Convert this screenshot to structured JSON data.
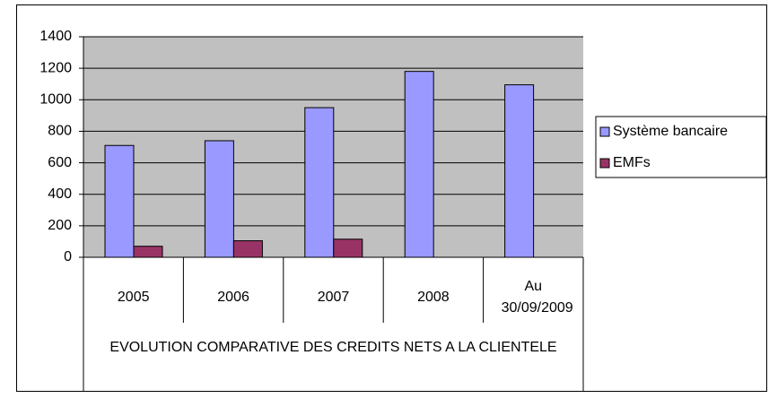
{
  "chart_data": {
    "type": "bar",
    "xlabel": "EVOLUTION COMPARATIVE DES CREDITS NETS A LA CLIENTELE",
    "categories": [
      "2005",
      "2006",
      "2007",
      "2008",
      "Au 30/09/2009"
    ],
    "series": [
      {
        "name": "Système bancaire",
        "color": "#9999ff",
        "values": [
          710,
          740,
          950,
          1180,
          1095
        ]
      },
      {
        "name": "EMFs",
        "color": "#993366",
        "values": [
          70,
          105,
          115,
          null,
          null
        ]
      }
    ],
    "ylim": [
      0,
      1400
    ],
    "yticks": [
      0,
      200,
      400,
      600,
      800,
      1000,
      1200,
      1400
    ],
    "grid": true,
    "legend": "right",
    "plot_background": "#c0c0c0"
  }
}
